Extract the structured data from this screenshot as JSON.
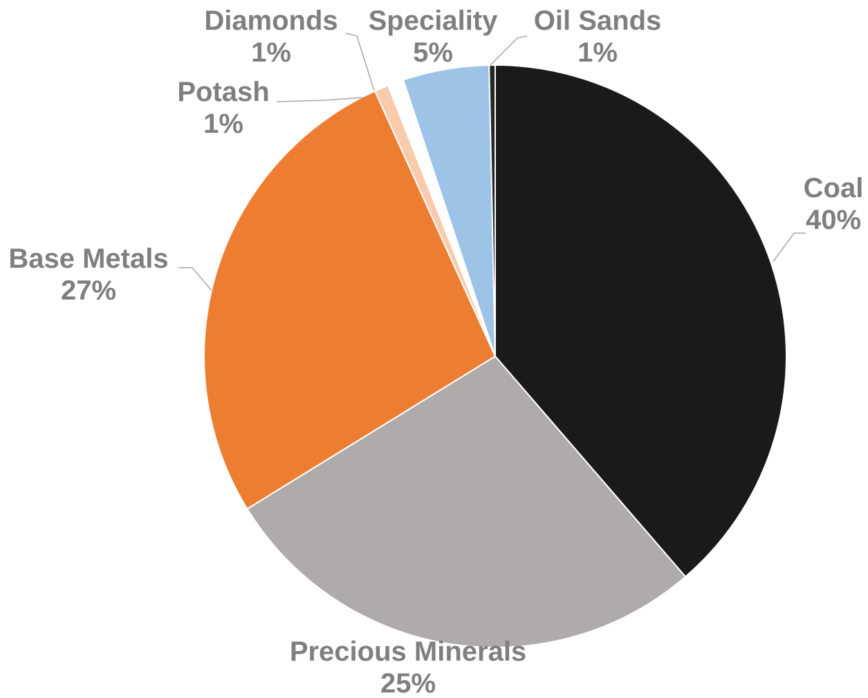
{
  "chart_data": {
    "type": "pie",
    "title": "",
    "slices": [
      {
        "label": "Coal",
        "value": 40,
        "display": "40%",
        "color": "#1a1a1a"
      },
      {
        "label": "Precious Minerals",
        "value": 25,
        "display": "25%",
        "color": "#afabab"
      },
      {
        "label": "Base Metals",
        "value": 27,
        "display": "27%",
        "color": "#ed7d31"
      },
      {
        "label": "Potash",
        "value": 1,
        "display": "1%",
        "color": "#f8cbad"
      },
      {
        "label": "Diamonds",
        "value": 1,
        "display": "1%",
        "color": "#ffffff"
      },
      {
        "label": "Speciality",
        "value": 5,
        "display": "5%",
        "color": "#9dc3e6"
      },
      {
        "label": "Oil Sands",
        "value": 1,
        "display": "1%",
        "color": "#262626"
      }
    ],
    "start_angle": "12 o'clock",
    "direction": "clockwise",
    "legend": "none",
    "data_labels": "category name and percentage, outside with leader lines",
    "label_color": "#7f7f7f",
    "leader_color": "#a6a6a6"
  }
}
